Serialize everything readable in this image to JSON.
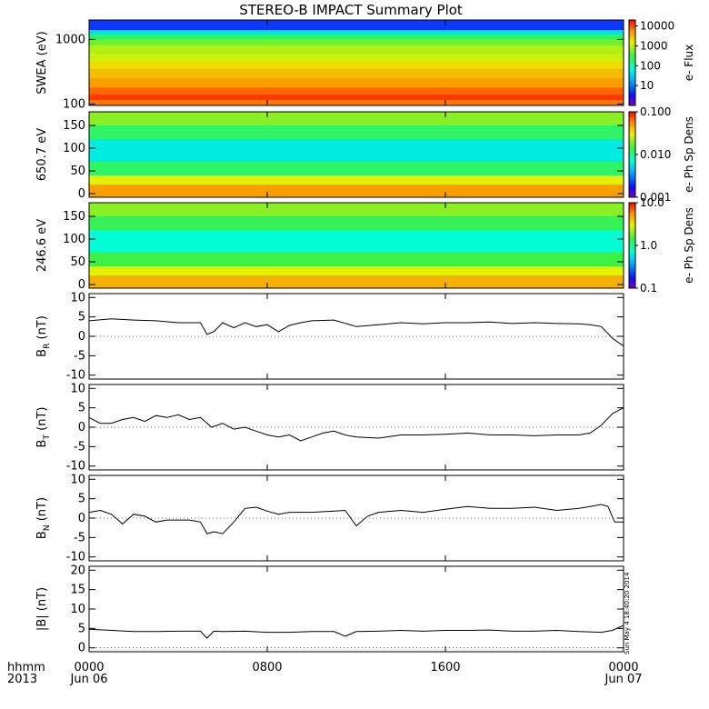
{
  "title": "STEREO-B IMPACT Summary Plot",
  "x_axis": {
    "corner_label_1": "hhmm",
    "corner_label_2": "2013",
    "ticks": [
      {
        "hours": 0,
        "line1": "0000",
        "line2": "Jun 06"
      },
      {
        "hours": 8,
        "line1": "0800",
        "line2": ""
      },
      {
        "hours": 16,
        "line1": "1600",
        "line2": ""
      },
      {
        "hours": 24,
        "line1": "0000",
        "line2": "Jun 07"
      }
    ]
  },
  "timestamp": "Sun May  4 18:40:20 2014",
  "colors": {
    "line": "#000000",
    "axis": "#000000"
  },
  "chart_data": [
    {
      "type": "heatmap",
      "ylabel": "SWEA (eV)",
      "yscale": "log",
      "ylim": [
        95,
        2000
      ],
      "yticks": [
        {
          "v": 100,
          "label": "100"
        },
        {
          "v": 1000,
          "label": "1000"
        }
      ],
      "colorbar": {
        "label": "e- Flux",
        "scale": "log",
        "range": [
          1,
          20000
        ],
        "ticks": [
          {
            "v": 10,
            "label": "10"
          },
          {
            "v": 100,
            "label": "100"
          },
          {
            "v": 1000,
            "label": "1000"
          },
          {
            "v": 10000,
            "label": "10000"
          }
        ]
      },
      "rows": [
        {
          "y": [
            1400,
            2000
          ],
          "value": 5
        },
        {
          "y": [
            1200,
            1400
          ],
          "value": 40
        },
        {
          "y": [
            1000,
            1200
          ],
          "value": 200
        },
        {
          "y": [
            800,
            1000
          ],
          "value": 500
        },
        {
          "y": [
            600,
            800
          ],
          "value": 900
        },
        {
          "y": [
            450,
            600
          ],
          "value": 1200
        },
        {
          "y": [
            350,
            450
          ],
          "value": 2000
        },
        {
          "y": [
            250,
            350
          ],
          "value": 3000
        },
        {
          "y": [
            180,
            250
          ],
          "value": 4500
        },
        {
          "y": [
            140,
            180
          ],
          "value": 8000
        },
        {
          "y": [
            115,
            140
          ],
          "value": 12000
        },
        {
          "y": [
            95,
            115
          ],
          "value": 7000
        }
      ]
    },
    {
      "type": "heatmap",
      "ylabel": "650.7 eV",
      "yscale": "linear",
      "ylim": [
        -8,
        180
      ],
      "yticks": [
        {
          "v": 0,
          "label": "0"
        },
        {
          "v": 50,
          "label": "50"
        },
        {
          "v": 100,
          "label": "100"
        },
        {
          "v": 150,
          "label": "150"
        }
      ],
      "colorbar": {
        "label": "e- Ph Sp Dens",
        "scale": "log",
        "range": [
          0.001,
          0.1
        ],
        "ticks": [
          {
            "v": 0.001,
            "label": "0.001"
          },
          {
            "v": 0.01,
            "label": "0.010"
          },
          {
            "v": 0.1,
            "label": "0.100"
          }
        ]
      },
      "rows": [
        {
          "y": [
            150,
            180
          ],
          "value": 0.02
        },
        {
          "y": [
            120,
            150
          ],
          "value": 0.012
        },
        {
          "y": [
            70,
            120
          ],
          "value": 0.006
        },
        {
          "y": [
            40,
            70
          ],
          "value": 0.012
        },
        {
          "y": [
            20,
            40
          ],
          "value": 0.03
        },
        {
          "y": [
            -8,
            20
          ],
          "value": 0.05
        }
      ]
    },
    {
      "type": "heatmap",
      "ylabel": "246.6 eV",
      "yscale": "linear",
      "ylim": [
        -8,
        180
      ],
      "yticks": [
        {
          "v": 0,
          "label": "0"
        },
        {
          "v": 50,
          "label": "50"
        },
        {
          "v": 100,
          "label": "100"
        },
        {
          "v": 150,
          "label": "150"
        }
      ],
      "colorbar": {
        "label": "e- Ph Sp Dens",
        "scale": "log",
        "range": [
          0.1,
          10
        ],
        "ticks": [
          {
            "v": 0.1,
            "label": "0.1"
          },
          {
            "v": 1,
            "label": "1.0"
          },
          {
            "v": 10,
            "label": "10.0"
          }
        ]
      },
      "rows": [
        {
          "y": [
            150,
            180
          ],
          "value": 2.0
        },
        {
          "y": [
            120,
            150
          ],
          "value": 1.3
        },
        {
          "y": [
            70,
            120
          ],
          "value": 0.7
        },
        {
          "y": [
            40,
            70
          ],
          "value": 1.4
        },
        {
          "y": [
            20,
            40
          ],
          "value": 3.0
        },
        {
          "y": [
            -8,
            20
          ],
          "value": 4.5
        }
      ]
    },
    {
      "type": "line",
      "ylabel": "B",
      "ylabel_sub": "R",
      "ylabel_unit": " (nT)",
      "ylim": [
        -11,
        11
      ],
      "yticks": [
        {
          "v": -10,
          "label": "-10"
        },
        {
          "v": -5,
          "label": "-5"
        },
        {
          "v": 0,
          "label": "0"
        },
        {
          "v": 5,
          "label": "5"
        },
        {
          "v": 10,
          "label": "10"
        }
      ],
      "x": [
        0,
        1,
        2,
        3,
        4,
        5,
        5.3,
        5.6,
        6,
        6.5,
        7,
        7.5,
        8,
        8.5,
        9,
        9.5,
        10,
        11,
        12,
        13,
        14,
        15,
        16,
        17,
        18,
        19,
        20,
        21,
        22,
        22.5,
        23,
        23.5,
        24
      ],
      "y": [
        4,
        4.5,
        4.2,
        4,
        3.5,
        3.5,
        0.5,
        1.2,
        3.5,
        2.2,
        3.5,
        2.5,
        3,
        1.2,
        2.8,
        3.5,
        4,
        4.2,
        2.5,
        3,
        3.5,
        3.2,
        3.5,
        3.5,
        3.7,
        3.3,
        3.5,
        3.3,
        3.2,
        3,
        2.5,
        -0.5,
        -2.5
      ]
    },
    {
      "type": "line",
      "ylabel": "B",
      "ylabel_sub": "T",
      "ylabel_unit": " (nT)",
      "ylim": [
        -11,
        11
      ],
      "yticks": [
        {
          "v": -10,
          "label": "-10"
        },
        {
          "v": -5,
          "label": "-5"
        },
        {
          "v": 0,
          "label": "0"
        },
        {
          "v": 5,
          "label": "5"
        },
        {
          "v": 10,
          "label": "10"
        }
      ],
      "x": [
        0,
        0.5,
        1,
        1.5,
        2,
        2.5,
        3,
        3.5,
        4,
        4.5,
        5,
        5.5,
        6,
        6.5,
        7,
        7.5,
        8,
        8.5,
        9,
        9.5,
        10,
        10.5,
        11,
        11.5,
        12,
        13,
        14,
        15,
        16,
        17,
        18,
        19,
        20,
        21,
        22,
        22.5,
        23,
        23.5,
        24
      ],
      "y": [
        2.5,
        1,
        1,
        2,
        2.5,
        1.5,
        3,
        2.5,
        3.2,
        2,
        2.5,
        0,
        1,
        -0.5,
        0,
        -1,
        -2,
        -2.5,
        -2,
        -3.5,
        -2.5,
        -1.5,
        -1,
        -2,
        -2.5,
        -2.8,
        -2,
        -2,
        -1.8,
        -1.5,
        -2,
        -2,
        -2.2,
        -2,
        -2,
        -1.5,
        0.5,
        3.5,
        5
      ]
    },
    {
      "type": "line",
      "ylabel": "B",
      "ylabel_sub": "N",
      "ylabel_unit": " (nT)",
      "ylim": [
        -11,
        11
      ],
      "yticks": [
        {
          "v": -10,
          "label": "-10"
        },
        {
          "v": -5,
          "label": "-5"
        },
        {
          "v": 0,
          "label": "0"
        },
        {
          "v": 5,
          "label": "5"
        },
        {
          "v": 10,
          "label": "10"
        }
      ],
      "x": [
        0,
        0.5,
        1,
        1.5,
        2,
        2.5,
        3,
        3.5,
        4,
        4.5,
        5,
        5.3,
        5.6,
        6,
        6.5,
        7,
        7.5,
        8,
        8.5,
        9,
        10,
        11,
        11.5,
        12,
        12.5,
        13,
        14,
        15,
        16,
        17,
        18,
        19,
        20,
        21,
        22,
        22.5,
        23,
        23.3,
        23.6,
        24
      ],
      "y": [
        1.5,
        2,
        1,
        -1.5,
        1,
        0.5,
        -1,
        -0.5,
        -0.5,
        -0.5,
        -1,
        -4,
        -3.5,
        -4,
        -1,
        2.5,
        2.8,
        1.8,
        1,
        1.5,
        1.5,
        1.8,
        2,
        -2,
        0.5,
        1.5,
        2,
        1.5,
        2.3,
        3,
        2.5,
        2.5,
        2.8,
        2,
        2.5,
        3,
        3.5,
        3,
        -1,
        -1
      ]
    },
    {
      "type": "line",
      "ylabel": "|B| (nT)",
      "ylabel_sub": "",
      "ylabel_unit": "",
      "ylim": [
        -1,
        21
      ],
      "yticks": [
        {
          "v": 0,
          "label": "0"
        },
        {
          "v": 5,
          "label": "5"
        },
        {
          "v": 10,
          "label": "10"
        },
        {
          "v": 15,
          "label": "15"
        },
        {
          "v": 20,
          "label": "20"
        }
      ],
      "x": [
        0,
        1,
        2,
        3,
        4,
        5,
        5.3,
        5.6,
        6,
        7,
        8,
        9,
        10,
        11,
        11.5,
        12,
        13,
        14,
        15,
        16,
        17,
        18,
        19,
        20,
        21,
        22,
        23,
        23.5,
        24
      ],
      "y": [
        4.8,
        4.5,
        4.2,
        4.2,
        4.3,
        4.3,
        2.5,
        4.3,
        4.2,
        4.3,
        4,
        4,
        4.2,
        4.2,
        3,
        4.2,
        4.3,
        4.5,
        4.3,
        4.5,
        4.5,
        4.6,
        4.3,
        4.3,
        4.5,
        4.2,
        4,
        4.5,
        5.8
      ]
    }
  ]
}
